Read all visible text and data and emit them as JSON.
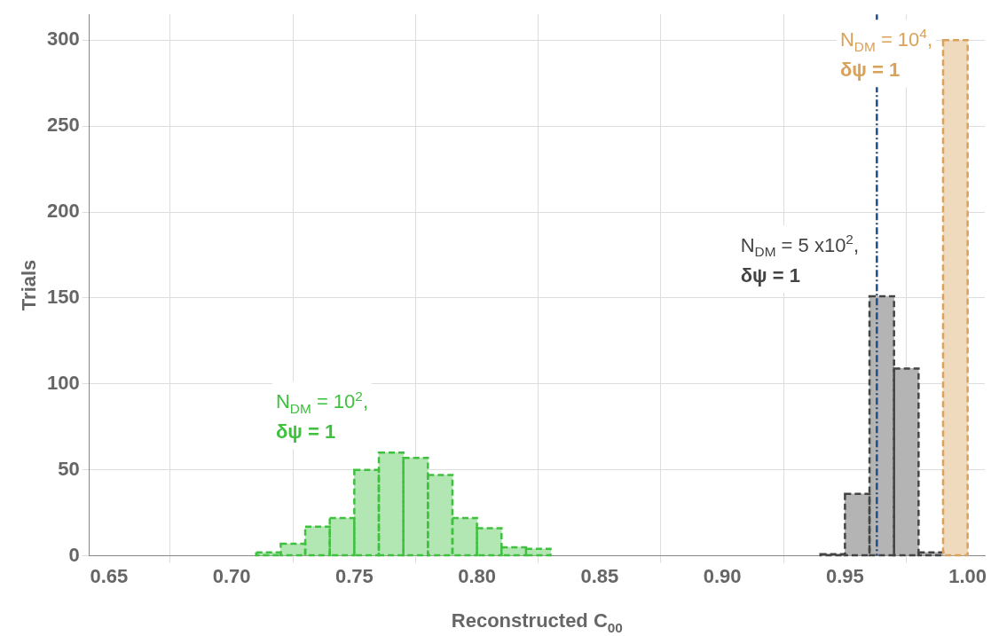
{
  "chart_data": {
    "type": "histogram",
    "xlabel": "Reconstructed C$_{00}$",
    "ylabel": "Trials",
    "bins": [
      0.7,
      0.71,
      0.72,
      0.73,
      0.74,
      0.75,
      0.76,
      0.77,
      0.78,
      0.79,
      0.8,
      0.81,
      0.82,
      0.83,
      0.84,
      0.85,
      0.86,
      0.87,
      0.88,
      0.89,
      0.9,
      0.91,
      0.92,
      0.93,
      0.94,
      0.95,
      0.96,
      0.97,
      0.98,
      0.99,
      1.0
    ],
    "series": [
      {
        "name": "N$_{DM}$ = 10$^{2}$, δψ = 1",
        "color": "#3fc13f",
        "values": [
          null,
          2,
          7,
          17,
          22,
          50,
          60,
          57,
          47,
          22,
          16,
          5,
          4,
          null,
          null,
          null,
          null,
          null,
          null,
          null,
          null,
          null,
          null,
          null,
          null,
          null,
          null,
          null,
          null,
          null
        ]
      },
      {
        "name": "N$_{DM}$ = 5 x10$^{2}$, δψ = 1",
        "color": "#444444",
        "values": [
          null,
          null,
          null,
          null,
          null,
          null,
          null,
          null,
          null,
          null,
          null,
          null,
          null,
          null,
          null,
          null,
          null,
          null,
          null,
          null,
          null,
          null,
          null,
          null,
          1,
          36,
          151,
          109,
          2,
          null
        ]
      },
      {
        "name": "N$_{DM}$ = 10$^{4}$, δψ = 1",
        "color": "#d9a25a",
        "values": [
          null,
          null,
          null,
          null,
          null,
          null,
          null,
          null,
          null,
          null,
          null,
          null,
          null,
          null,
          null,
          null,
          null,
          null,
          null,
          null,
          null,
          null,
          null,
          null,
          null,
          null,
          null,
          null,
          null,
          300
        ]
      }
    ],
    "xlim": [
      0.642,
      1.007
    ],
    "xticks": [
      {
        "value": 0.65,
        "label": "0.65"
      },
      {
        "value": 0.7,
        "label": "0.70"
      },
      {
        "value": 0.75,
        "label": "0.75"
      },
      {
        "value": 0.8,
        "label": "0.80"
      },
      {
        "value": 0.85,
        "label": "0.85"
      },
      {
        "value": 0.9,
        "label": "0.90"
      },
      {
        "value": 0.95,
        "label": "0.95"
      },
      {
        "value": 1.0,
        "label": "1.00"
      }
    ],
    "ylim": [
      0,
      315
    ],
    "yticks": [
      0,
      50,
      100,
      150,
      200,
      250,
      300
    ],
    "ref_lines": [
      {
        "axis": "x",
        "value": 0.963,
        "color": "#1f4e8c",
        "line_style": "dashdot"
      }
    ],
    "grid": true,
    "legend": false,
    "line_style": "dashed"
  }
}
